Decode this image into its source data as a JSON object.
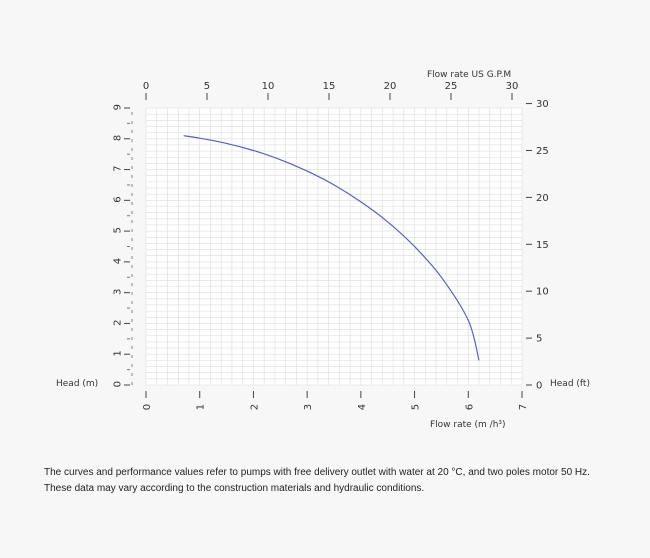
{
  "chart_data": {
    "type": "line",
    "x_primary": {
      "label": "Flow rate",
      "unit_label": "(m /h³)",
      "ticks": [
        0,
        1,
        2,
        3,
        4,
        5,
        6,
        7
      ],
      "range": [
        0,
        7
      ]
    },
    "x_secondary": {
      "label": "Flow rate US G.P.M",
      "ticks": [
        0,
        5,
        10,
        15,
        20,
        25,
        30
      ]
    },
    "y_primary": {
      "label": "Head (m)",
      "ticks": [
        0,
        1,
        2,
        3,
        4,
        5,
        6,
        7,
        8,
        9
      ],
      "range": [
        0,
        9
      ]
    },
    "y_secondary": {
      "label": "Head (ft)",
      "ticks": [
        0,
        5,
        10,
        15,
        20,
        25,
        30
      ]
    },
    "grid": true,
    "series": [
      {
        "color": "#5560c8",
        "x": [
          0.7,
          1.0,
          1.5,
          2.0,
          2.5,
          3.0,
          3.5,
          4.0,
          4.5,
          5.0,
          5.5,
          6.0,
          6.2
        ],
        "y": [
          8.1,
          8.02,
          7.85,
          7.62,
          7.32,
          6.95,
          6.5,
          5.95,
          5.3,
          4.5,
          3.5,
          2.1,
          0.8
        ]
      }
    ]
  },
  "footnote": {
    "line1": "The curves and performance values refer to pumps with free delivery outlet with water at 20 °C, and two poles motor 50 Hz.",
    "line2": "These data may vary according to the construction materials and hydraulic conditions."
  }
}
